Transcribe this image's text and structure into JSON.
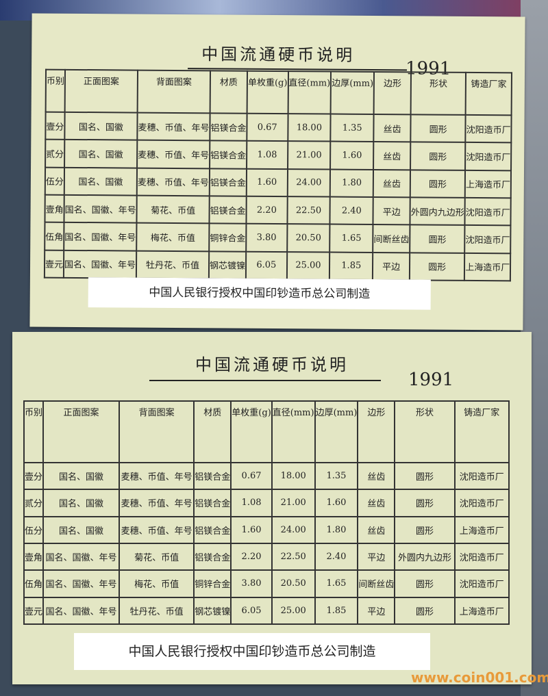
{
  "cards": [
    {
      "title": "中国流通硬币说明",
      "year": "1991",
      "footer": "中国人民银行授权中国印钞造币总公司制造"
    },
    {
      "title": "中国流通硬币说明",
      "year": "1991",
      "footer": "中国人民银行授权中国印钞造币总公司制造"
    }
  ],
  "table": {
    "headers": [
      "币别",
      "正面图案",
      "背面图案",
      "材质",
      "单枚重(g)",
      "直径(mm)",
      "边厚(mm)",
      "边形",
      "形状",
      "铸造厂家"
    ],
    "rows": [
      [
        "壹分",
        "国名、国徽",
        "麦穗、币值、年号",
        "铝镁合金",
        "0.67",
        "18.00",
        "1.35",
        "丝齿",
        "圆形",
        "沈阳造币厂"
      ],
      [
        "贰分",
        "国名、国徽",
        "麦穗、币值、年号",
        "铝镁合金",
        "1.08",
        "21.00",
        "1.60",
        "丝齿",
        "圆形",
        "沈阳造币厂"
      ],
      [
        "伍分",
        "国名、国徽",
        "麦穗、币值、年号",
        "铝镁合金",
        "1.60",
        "24.00",
        "1.80",
        "丝齿",
        "圆形",
        "上海造币厂"
      ],
      [
        "壹角",
        "国名、国徽、年号",
        "菊花、币值",
        "铝镁合金",
        "2.20",
        "22.50",
        "2.40",
        "平边",
        "外圆内九边形",
        "沈阳造币厂"
      ],
      [
        "伍角",
        "国名、国徽、年号",
        "梅花、币值",
        "铜锌合金",
        "3.80",
        "20.50",
        "1.65",
        "间断丝齿",
        "圆形",
        "沈阳造币厂"
      ],
      [
        "壹元",
        "国名、国徽、年号",
        "牡丹花、币值",
        "钢芯镀镍",
        "6.05",
        "25.00",
        "1.85",
        "平边",
        "圆形",
        "上海造币厂"
      ]
    ]
  },
  "watermark": "www.coin001.com"
}
